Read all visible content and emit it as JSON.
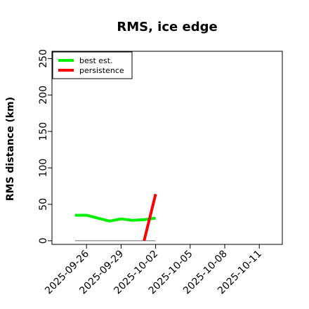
{
  "chart_data": {
    "type": "line",
    "title": "RMS, ice edge",
    "xlabel": "",
    "ylabel": "RMS distance (km)",
    "xlim": [
      "2025-09-23",
      "2025-10-13"
    ],
    "ylim": [
      -5,
      260
    ],
    "x_ticks": [
      "2025-09-26",
      "2025-09-29",
      "2025-10-02",
      "2025-10-05",
      "2025-10-08",
      "2025-10-11"
    ],
    "y_ticks": [
      0,
      50,
      100,
      150,
      200,
      250
    ],
    "grid": false,
    "legend_position": "top-left",
    "series": [
      {
        "name": "best est.",
        "color": "#00ee00",
        "x": [
          "2025-09-25",
          "2025-09-26",
          "2025-09-27",
          "2025-09-28",
          "2025-09-29",
          "2025-09-30",
          "2025-10-01",
          "2025-10-02"
        ],
        "values": [
          35,
          35,
          31,
          27,
          30,
          28,
          29,
          31
        ]
      },
      {
        "name": "persistence",
        "color": "#ff0000",
        "x": [
          "2025-10-01",
          "2025-10-02"
        ],
        "values": [
          0,
          64
        ]
      }
    ],
    "reference_line": {
      "color": "#808080",
      "x": [
        "2025-09-25",
        "2025-10-02"
      ],
      "values": [
        0,
        0
      ]
    }
  }
}
